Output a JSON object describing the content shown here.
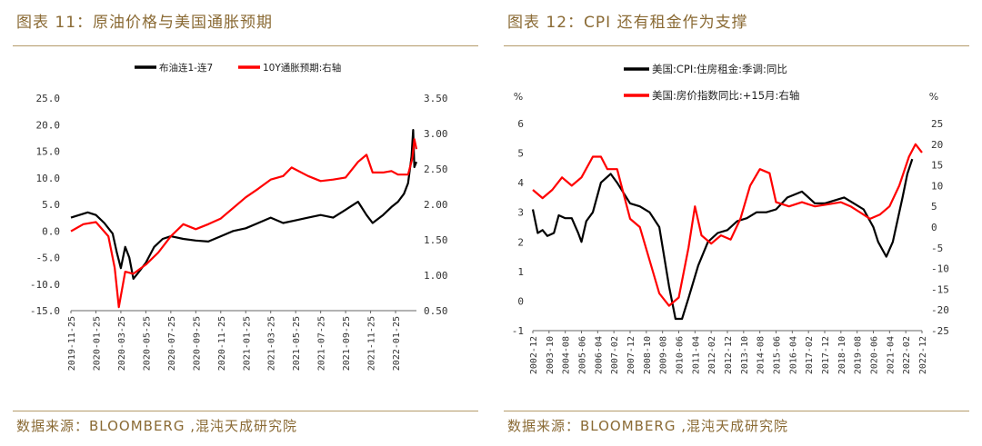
{
  "left": {
    "title": "图表 11：原油价格与美国通胀预期",
    "source": "数据来源：BLOOMBERG ,混沌天成研究院"
  },
  "right": {
    "title": "图表 12：CPI 还有租金作为支撑",
    "source": "数据来源：BLOOMBERG ,混沌天成研究院"
  },
  "chart_data": [
    {
      "type": "line",
      "title": "",
      "grid": false,
      "legend_position": "top-center",
      "x_ticks": [
        "2019-11-25",
        "2020-01-25",
        "2020-03-25",
        "2020-05-25",
        "2020-07-25",
        "2020-09-25",
        "2020-11-25",
        "2021-01-25",
        "2021-03-25",
        "2021-05-25",
        "2021-07-25",
        "2021-09-25",
        "2021-11-25",
        "2022-01-25"
      ],
      "y_left_ticks": [
        "25.0",
        "20.0",
        "15.0",
        "10.0",
        "5.0",
        "0.0",
        "-5.0",
        "-10.0",
        "-15.0"
      ],
      "y_right_ticks": [
        "3.50",
        "3.00",
        "2.50",
        "2.00",
        "1.50",
        "1.00",
        "0.50"
      ],
      "y_left_range": [
        -15,
        25
      ],
      "y_right_range": [
        0.5,
        3.5
      ],
      "x_range": [
        "2019-11-25",
        "2022-03-15"
      ],
      "series": [
        {
          "name": "布油连1-连7",
          "axis": "left",
          "color": "#000000",
          "points": [
            [
              "2019-11-25",
              2.5
            ],
            [
              "2019-12-15",
              3.0
            ],
            [
              "2020-01-05",
              3.5
            ],
            [
              "2020-01-25",
              3.0
            ],
            [
              "2020-02-15",
              1.5
            ],
            [
              "2020-03-05",
              -0.5
            ],
            [
              "2020-03-15",
              -4.0
            ],
            [
              "2020-03-25",
              -7.0
            ],
            [
              "2020-04-05",
              -3.0
            ],
            [
              "2020-04-15",
              -5.0
            ],
            [
              "2020-04-25",
              -9.0
            ],
            [
              "2020-05-05",
              -8.0
            ],
            [
              "2020-05-25",
              -6.0
            ],
            [
              "2020-06-15",
              -3.0
            ],
            [
              "2020-07-05",
              -1.5
            ],
            [
              "2020-07-25",
              -1.0
            ],
            [
              "2020-08-25",
              -1.5
            ],
            [
              "2020-09-25",
              -1.8
            ],
            [
              "2020-10-25",
              -2.0
            ],
            [
              "2020-11-25",
              -1.0
            ],
            [
              "2020-12-25",
              0.0
            ],
            [
              "2021-01-25",
              0.5
            ],
            [
              "2021-02-25",
              1.5
            ],
            [
              "2021-03-25",
              2.5
            ],
            [
              "2021-04-25",
              1.5
            ],
            [
              "2021-05-25",
              2.0
            ],
            [
              "2021-06-25",
              2.5
            ],
            [
              "2021-07-25",
              3.0
            ],
            [
              "2021-08-25",
              2.5
            ],
            [
              "2021-09-25",
              4.0
            ],
            [
              "2021-10-25",
              5.5
            ],
            [
              "2021-11-15",
              3.0
            ],
            [
              "2021-11-30",
              1.5
            ],
            [
              "2021-12-25",
              3.0
            ],
            [
              "2022-01-15",
              4.5
            ],
            [
              "2022-01-31",
              5.5
            ],
            [
              "2022-02-15",
              7.0
            ],
            [
              "2022-02-25",
              9.0
            ],
            [
              "2022-03-03",
              14.0
            ],
            [
              "2022-03-07",
              19.0
            ],
            [
              "2022-03-10",
              12.0
            ],
            [
              "2022-03-15",
              13.0
            ]
          ]
        },
        {
          "name": "10Y通胀预期:右轴",
          "axis": "right",
          "color": "#ff0000",
          "points": [
            [
              "2019-11-25",
              1.62
            ],
            [
              "2019-12-25",
              1.72
            ],
            [
              "2020-01-25",
              1.75
            ],
            [
              "2020-02-25",
              1.55
            ],
            [
              "2020-03-10",
              1.1
            ],
            [
              "2020-03-20",
              0.55
            ],
            [
              "2020-04-05",
              1.05
            ],
            [
              "2020-04-25",
              1.02
            ],
            [
              "2020-05-25",
              1.15
            ],
            [
              "2020-06-25",
              1.32
            ],
            [
              "2020-07-25",
              1.55
            ],
            [
              "2020-08-25",
              1.72
            ],
            [
              "2020-09-25",
              1.65
            ],
            [
              "2020-10-25",
              1.72
            ],
            [
              "2020-11-25",
              1.8
            ],
            [
              "2020-12-25",
              1.95
            ],
            [
              "2021-01-25",
              2.1
            ],
            [
              "2021-02-25",
              2.22
            ],
            [
              "2021-03-25",
              2.35
            ],
            [
              "2021-04-25",
              2.4
            ],
            [
              "2021-05-15",
              2.52
            ],
            [
              "2021-06-25",
              2.4
            ],
            [
              "2021-07-25",
              2.33
            ],
            [
              "2021-08-25",
              2.35
            ],
            [
              "2021-09-25",
              2.38
            ],
            [
              "2021-10-25",
              2.6
            ],
            [
              "2021-11-15",
              2.7
            ],
            [
              "2021-11-30",
              2.45
            ],
            [
              "2021-12-25",
              2.45
            ],
            [
              "2022-01-15",
              2.47
            ],
            [
              "2022-01-31",
              2.42
            ],
            [
              "2022-02-25",
              2.42
            ],
            [
              "2022-03-05",
              2.65
            ],
            [
              "2022-03-10",
              2.92
            ],
            [
              "2022-03-15",
              2.78
            ]
          ]
        }
      ]
    },
    {
      "type": "line",
      "title": "",
      "grid": false,
      "legend_position": "top-left",
      "y_left_unit": "%",
      "y_right_unit": "%",
      "x_ticks": [
        "2002-12",
        "2003-10",
        "2004-08",
        "2005-06",
        "2006-04",
        "2007-02",
        "2007-12",
        "2008-10",
        "2009-08",
        "2010-06",
        "2011-04",
        "2012-02",
        "2012-12",
        "2013-10",
        "2014-08",
        "2015-06",
        "2016-04",
        "2017-02",
        "2017-12",
        "2018-10",
        "2019-08",
        "2020-06",
        "2021-04",
        "2022-02",
        "2022-12"
      ],
      "y_left_ticks": [
        "6",
        "5",
        "4",
        "3",
        "2",
        "1",
        "0",
        "-1"
      ],
      "y_right_ticks": [
        "25",
        "20",
        "15",
        "10",
        "5",
        "0",
        "-5",
        "-10",
        "-15",
        "-20",
        "-25"
      ],
      "y_left_range": [
        -1,
        6
      ],
      "y_right_range": [
        -25,
        25
      ],
      "x_range": [
        "2002-12",
        "2022-12"
      ],
      "series": [
        {
          "name": "美国:CPI:住房租金:季调:同比",
          "axis": "left",
          "color": "#000000",
          "points": [
            [
              "2002-12",
              3.1
            ],
            [
              "2003-03",
              2.3
            ],
            [
              "2003-06",
              2.4
            ],
            [
              "2003-09",
              2.2
            ],
            [
              "2004-01",
              2.3
            ],
            [
              "2004-04",
              2.9
            ],
            [
              "2004-08",
              2.8
            ],
            [
              "2004-12",
              2.8
            ],
            [
              "2005-04",
              2.3
            ],
            [
              "2005-06",
              2.0
            ],
            [
              "2005-09",
              2.7
            ],
            [
              "2006-01",
              3.0
            ],
            [
              "2006-06",
              4.0
            ],
            [
              "2006-12",
              4.3
            ],
            [
              "2007-04",
              4.0
            ],
            [
              "2007-12",
              3.3
            ],
            [
              "2008-06",
              3.2
            ],
            [
              "2008-12",
              3.0
            ],
            [
              "2009-06",
              2.5
            ],
            [
              "2009-12",
              0.5
            ],
            [
              "2010-04",
              -0.6
            ],
            [
              "2010-08",
              -0.6
            ],
            [
              "2010-12",
              0.1
            ],
            [
              "2011-06",
              1.2
            ],
            [
              "2011-12",
              2.0
            ],
            [
              "2012-06",
              2.3
            ],
            [
              "2012-12",
              2.4
            ],
            [
              "2013-06",
              2.7
            ],
            [
              "2013-12",
              2.8
            ],
            [
              "2014-06",
              3.0
            ],
            [
              "2014-12",
              3.0
            ],
            [
              "2015-06",
              3.1
            ],
            [
              "2016-01",
              3.5
            ],
            [
              "2016-10",
              3.7
            ],
            [
              "2017-06",
              3.3
            ],
            [
              "2017-12",
              3.3
            ],
            [
              "2018-06",
              3.4
            ],
            [
              "2018-12",
              3.5
            ],
            [
              "2019-06",
              3.3
            ],
            [
              "2019-12",
              3.1
            ],
            [
              "2020-06",
              2.5
            ],
            [
              "2020-09",
              2.0
            ],
            [
              "2020-12",
              1.7
            ],
            [
              "2021-02",
              1.5
            ],
            [
              "2021-06",
              2.0
            ],
            [
              "2021-12",
              3.5
            ],
            [
              "2022-03",
              4.3
            ],
            [
              "2022-06",
              4.8
            ]
          ]
        },
        {
          "name": "美国:房价指数同比:+15月:右轴",
          "axis": "right",
          "color": "#ff0000",
          "points": [
            [
              "2002-12",
              9.0
            ],
            [
              "2003-06",
              7.0
            ],
            [
              "2003-12",
              9.0
            ],
            [
              "2004-06",
              12.0
            ],
            [
              "2004-12",
              10.0
            ],
            [
              "2005-06",
              12.0
            ],
            [
              "2006-01",
              17.0
            ],
            [
              "2006-06",
              17.0
            ],
            [
              "2006-10",
              14.0
            ],
            [
              "2007-04",
              14.0
            ],
            [
              "2007-12",
              2.0
            ],
            [
              "2008-06",
              0.0
            ],
            [
              "2008-12",
              -8.0
            ],
            [
              "2009-06",
              -16.0
            ],
            [
              "2009-12",
              -19.0
            ],
            [
              "2010-06",
              -17.0
            ],
            [
              "2010-12",
              -5.0
            ],
            [
              "2011-04",
              5.0
            ],
            [
              "2011-08",
              -2.0
            ],
            [
              "2012-02",
              -4.0
            ],
            [
              "2012-08",
              -2.0
            ],
            [
              "2013-02",
              -3.0
            ],
            [
              "2013-08",
              2.0
            ],
            [
              "2014-02",
              10.0
            ],
            [
              "2014-08",
              14.0
            ],
            [
              "2015-02",
              13.0
            ],
            [
              "2015-06",
              6.0
            ],
            [
              "2016-02",
              5.0
            ],
            [
              "2016-10",
              6.0
            ],
            [
              "2017-06",
              5.0
            ],
            [
              "2018-02",
              5.5
            ],
            [
              "2018-10",
              6.0
            ],
            [
              "2019-04",
              5.0
            ],
            [
              "2019-10",
              3.5
            ],
            [
              "2020-04",
              2.0
            ],
            [
              "2020-10",
              3.0
            ],
            [
              "2021-04",
              5.0
            ],
            [
              "2021-10",
              10.0
            ],
            [
              "2022-04",
              17.0
            ],
            [
              "2022-08",
              20.0
            ],
            [
              "2022-12",
              18.0
            ]
          ]
        }
      ]
    }
  ]
}
